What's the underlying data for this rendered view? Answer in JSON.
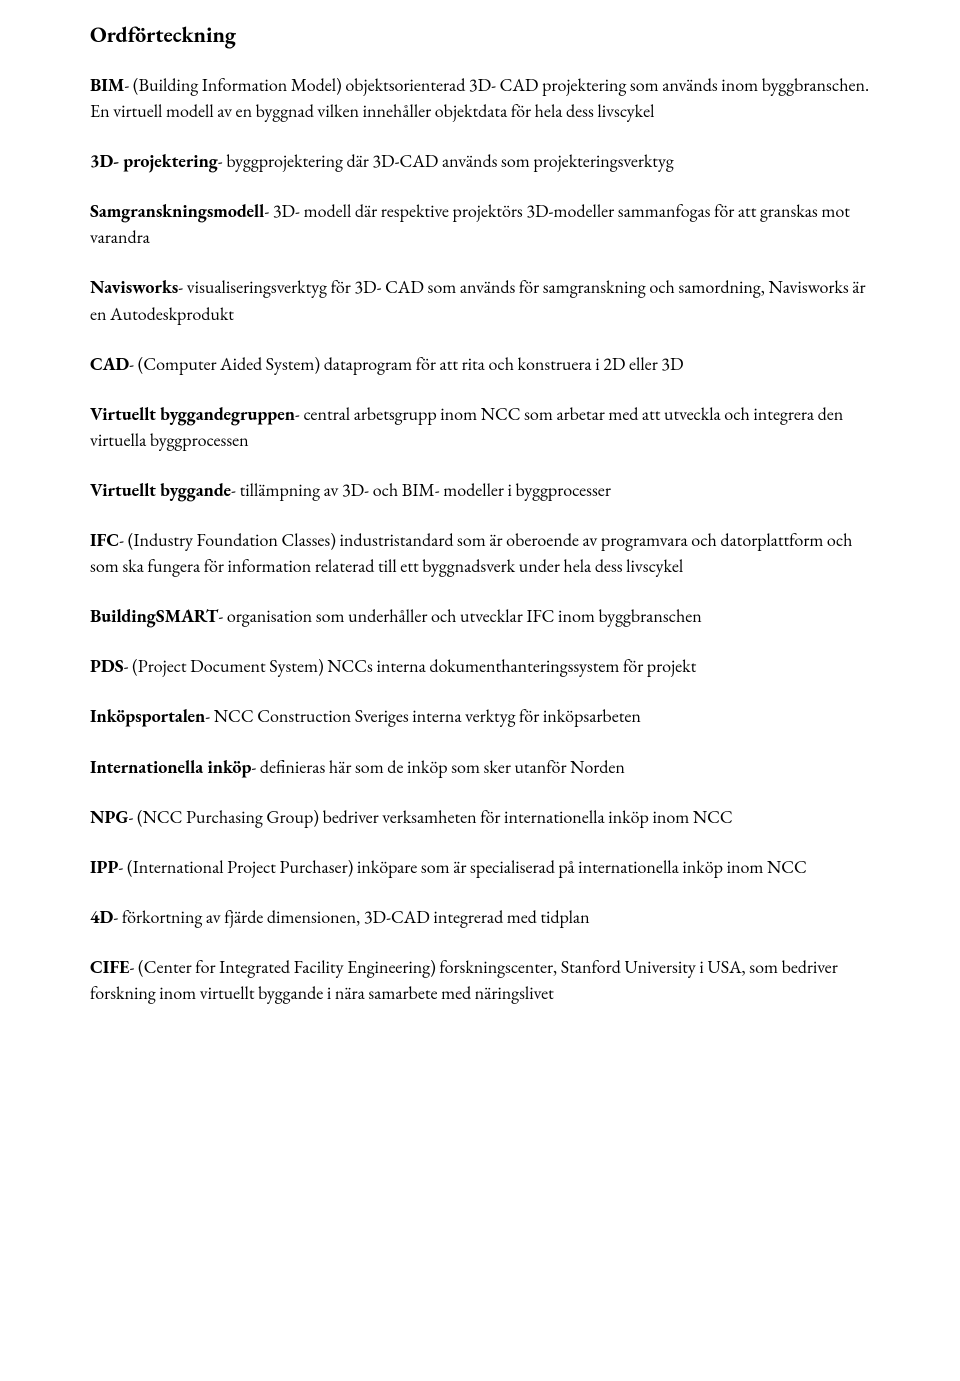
{
  "title": "Ordförteckning",
  "entries": [
    {
      "term": "BIM",
      "text": "- (Building Information Model) objektsorienterad 3D- CAD projektering som används inom byggbranschen. En virtuell modell av en byggnad vilken innehåller objektdata för hela dess livscykel"
    },
    {
      "term": "3D- projektering",
      "text": "- byggprojektering där 3D-CAD används som projekteringsverktyg"
    },
    {
      "term": "Samgranskningsmodell",
      "text": "-  3D- modell där respektive projektörs 3D-modeller sammanfogas för att granskas mot varandra"
    },
    {
      "term": "Navisworks",
      "text": "- visualiseringsverktyg för 3D- CAD som används för samgranskning och samordning, Navisworks är en Autodeskprodukt"
    },
    {
      "term": "CAD",
      "text": "- (Computer Aided System) dataprogram för att rita och konstruera i 2D eller 3D"
    },
    {
      "term": "Virtuellt byggandegruppen",
      "text": "- central arbetsgrupp inom NCC som arbetar med att utveckla och integrera den virtuella byggprocessen"
    },
    {
      "term": "Virtuellt byggande",
      "text": "- tillämpning av 3D- och BIM- modeller i byggprocesser"
    },
    {
      "term": "IFC",
      "text": "- (Industry Foundation Classes) industristandard som är oberoende av programvara och datorplattform och som ska fungera för information relaterad till ett byggnadsverk under hela dess livscykel"
    },
    {
      "term": "BuildingSMART",
      "text": "- organisation som underhåller och utvecklar IFC inom byggbranschen"
    },
    {
      "term": "PDS",
      "text": "- (Project Document System) NCCs interna dokumenthanteringssystem för projekt"
    },
    {
      "term": "Inköpsportalen",
      "text": "- NCC Construction Sveriges interna verktyg för inköpsarbeten"
    },
    {
      "term": "Internationella inköp",
      "text": "- definieras här som de inköp som sker utanför Norden"
    },
    {
      "term": "NPG",
      "text": "- (NCC Purchasing Group) bedriver verksamheten för internationella inköp inom NCC"
    },
    {
      "term": "IPP",
      "text": "- (International Project Purchaser) inköpare som är specialiserad på internationella inköp inom NCC"
    },
    {
      "term": "4D",
      "text": "- förkortning av fjärde dimensionen, 3D-CAD integrerad med tidplan"
    },
    {
      "term": "CIFE",
      "text": "- (Center for Integrated Facility Engineering) forskningscenter, Stanford University i USA, som bedriver forskning inom virtuellt byggande i nära samarbete med näringslivet"
    }
  ]
}
